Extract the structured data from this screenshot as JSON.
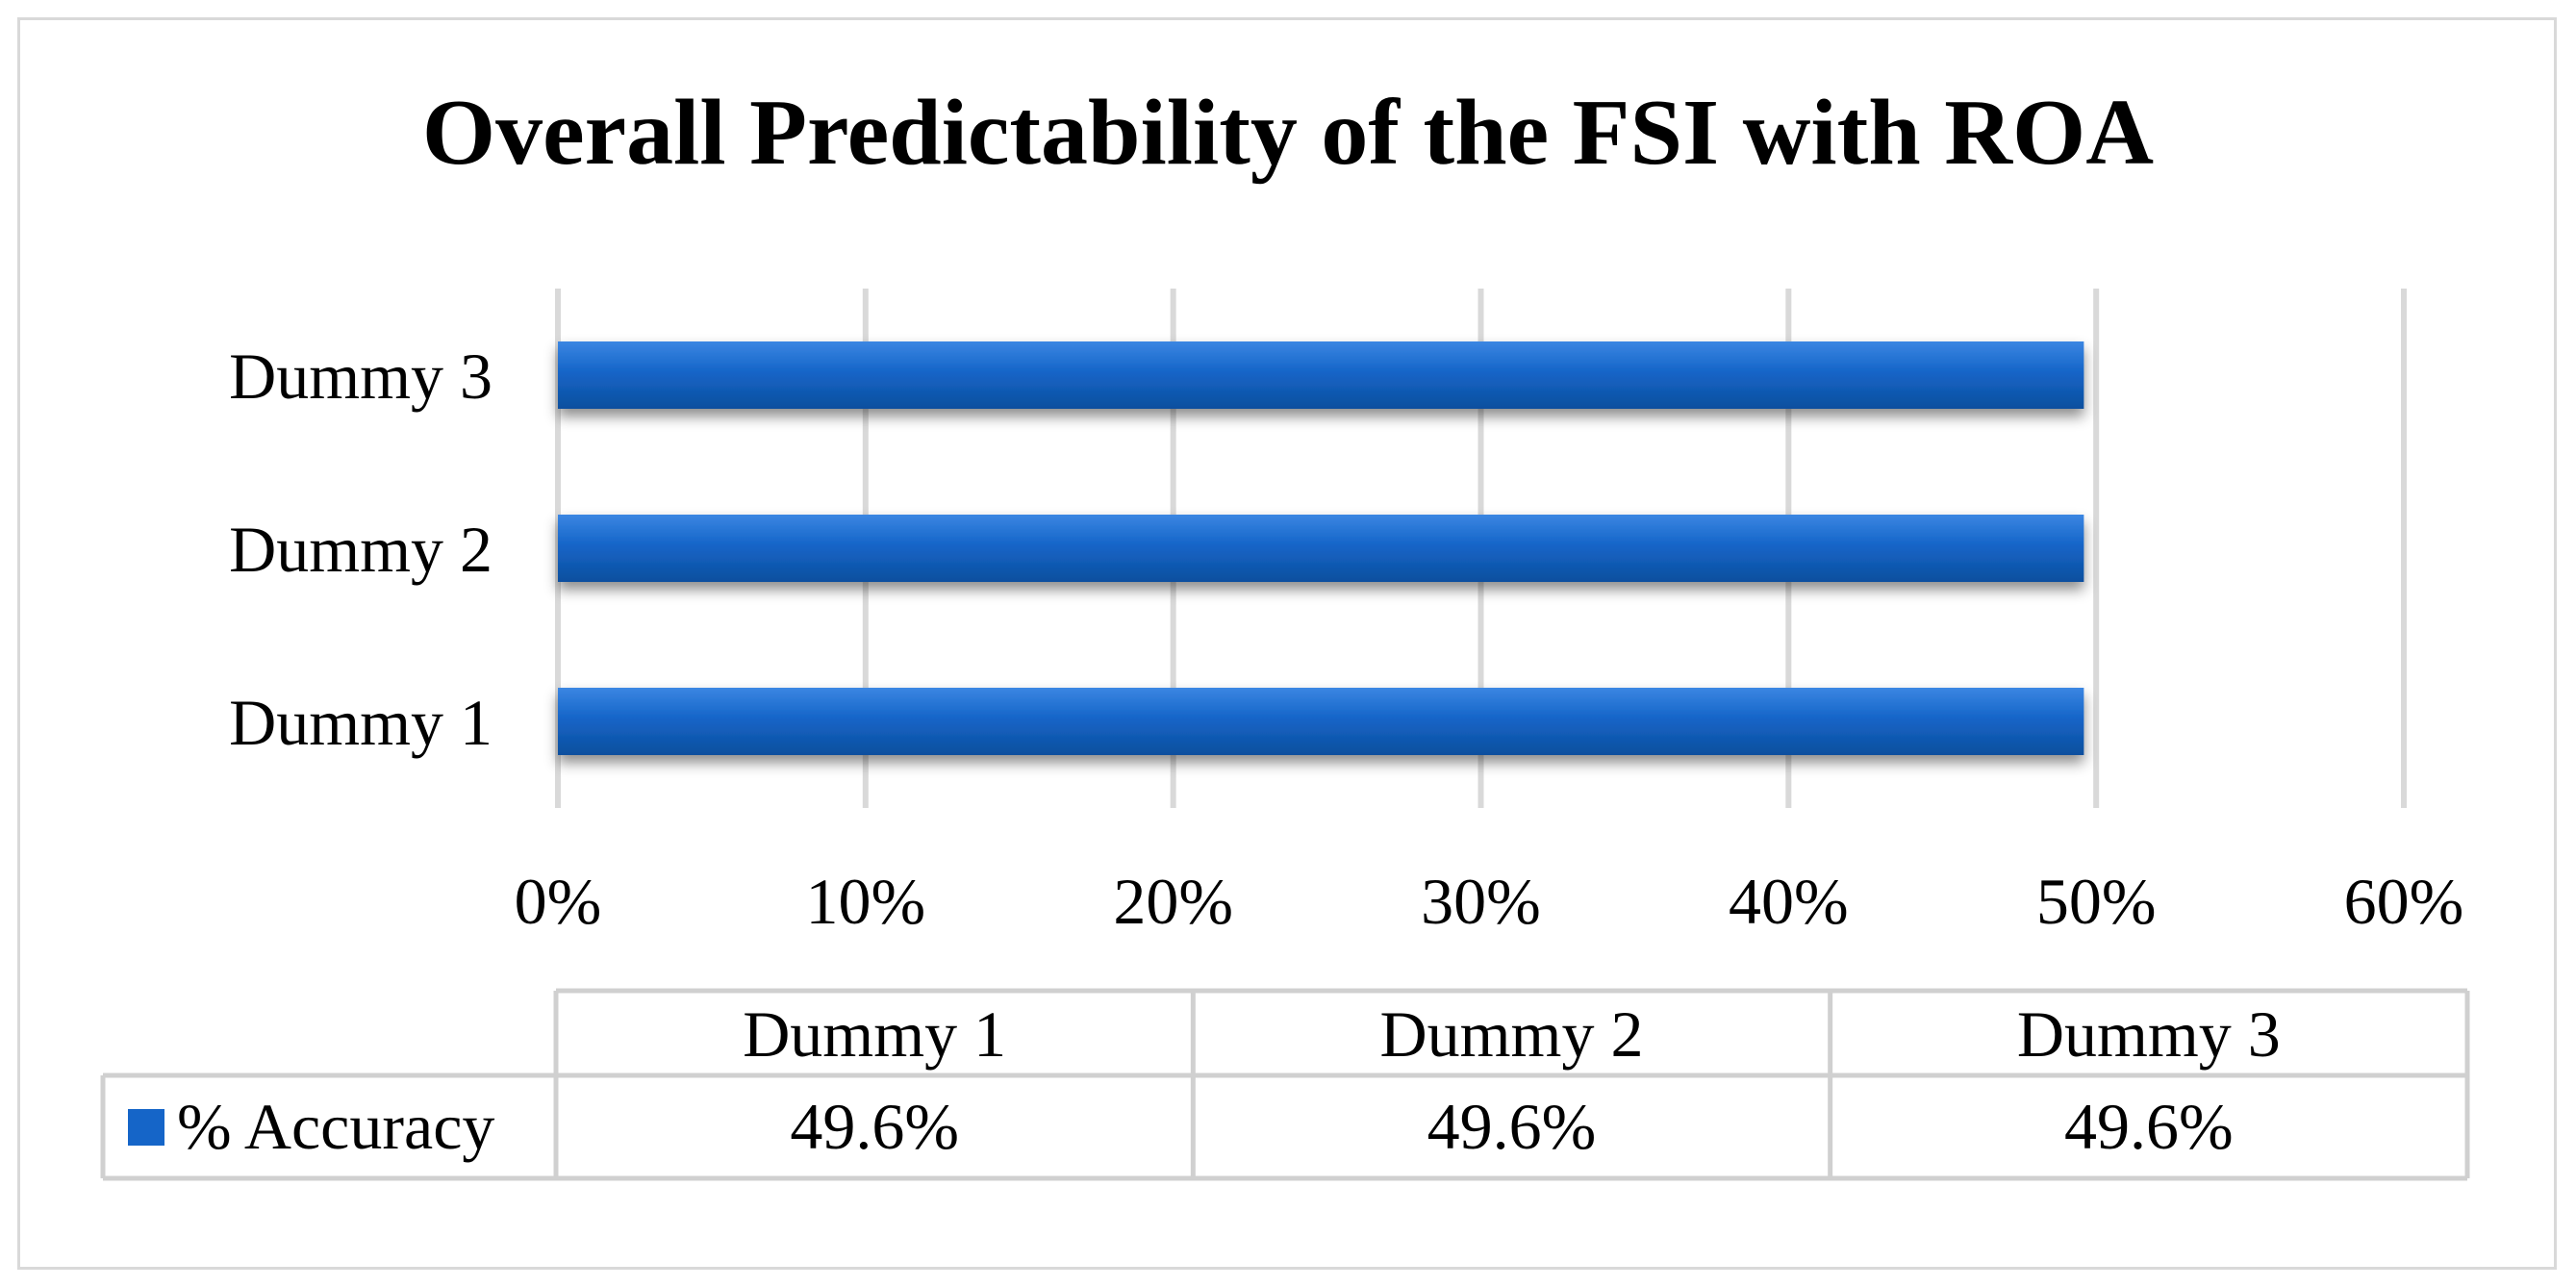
{
  "chart_data": {
    "type": "bar",
    "orientation": "horizontal",
    "title": "Overall Predictability of the FSI with ROA",
    "categories": [
      "Dummy 1",
      "Dummy 2",
      "Dummy 3"
    ],
    "series": [
      {
        "name": "% Accuracy",
        "values": [
          49.6,
          49.6,
          49.6
        ],
        "value_labels": [
          "49.6%",
          "49.6%",
          "49.6%"
        ],
        "color": "#1565c8"
      }
    ],
    "xlim": [
      0,
      60
    ],
    "xticks": [
      0,
      10,
      20,
      30,
      40,
      50,
      60
    ],
    "xtick_labels": [
      "0%",
      "10%",
      "20%",
      "30%",
      "40%",
      "50%",
      "60%"
    ],
    "xlabel": "",
    "ylabel": "",
    "grid": "vertical",
    "legend": "data-table",
    "data_table": true,
    "colors": {
      "gridline": "#d9d9d9",
      "border": "#d9d9d9",
      "table_border": "#d0d0d0",
      "bar": "#1565c8",
      "bar_highlight": "#3b86e2",
      "bar_shadow": "#0d4f9e"
    }
  }
}
